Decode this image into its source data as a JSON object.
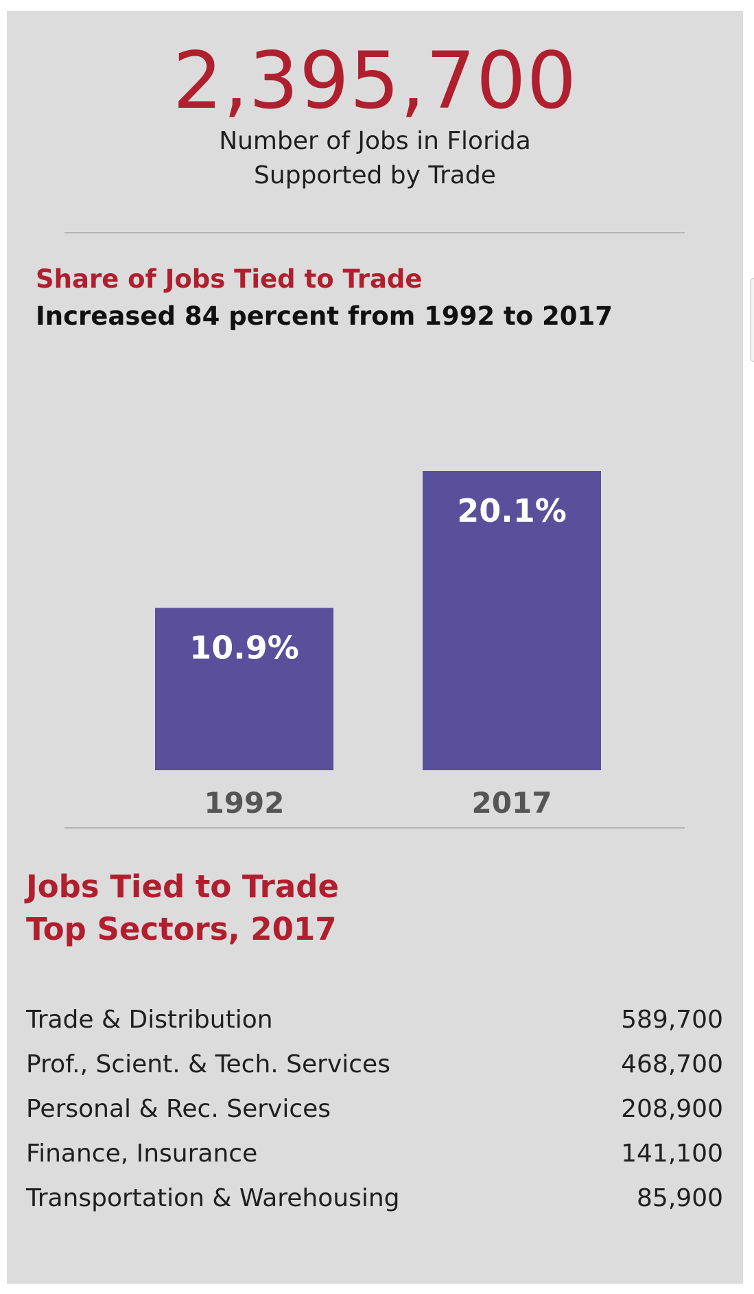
{
  "headline": {
    "number": "2,395,700",
    "caption_line1": "Number of Jobs in Florida",
    "caption_line2": "Supported by Trade"
  },
  "share_section": {
    "title": "Share of Jobs Tied to Trade",
    "subtitle": "Increased 84 percent from 1992 to 2017"
  },
  "chart_data": {
    "type": "bar",
    "title": "Share of Jobs Tied to Trade",
    "subtitle": "Increased 84 percent from 1992 to 2017",
    "categories": [
      "1992",
      "2017"
    ],
    "values": [
      10.9,
      20.1
    ],
    "data_labels": [
      "10.9%",
      "20.1%"
    ],
    "unit": "%",
    "ylim": [
      0,
      20.1
    ],
    "grid": false,
    "bar_color": "#5a4f9b"
  },
  "sectors_section": {
    "title": "Jobs Tied to Trade",
    "subtitle": "Top Sectors, 2017",
    "rows": [
      {
        "name": "Trade & Distribution",
        "value": "589,700"
      },
      {
        "name": "Prof., Scient. & Tech. Services",
        "value": "468,700"
      },
      {
        "name": "Personal & Rec. Services",
        "value": "208,900"
      },
      {
        "name": "Finance, Insurance",
        "value": "141,100"
      },
      {
        "name": "Transportation & Warehousing",
        "value": "85,900"
      }
    ]
  },
  "colors": {
    "accent_red": "#b01f2e",
    "bar_purple": "#5a4f9b",
    "panel_gray": "#dcdcdc"
  }
}
